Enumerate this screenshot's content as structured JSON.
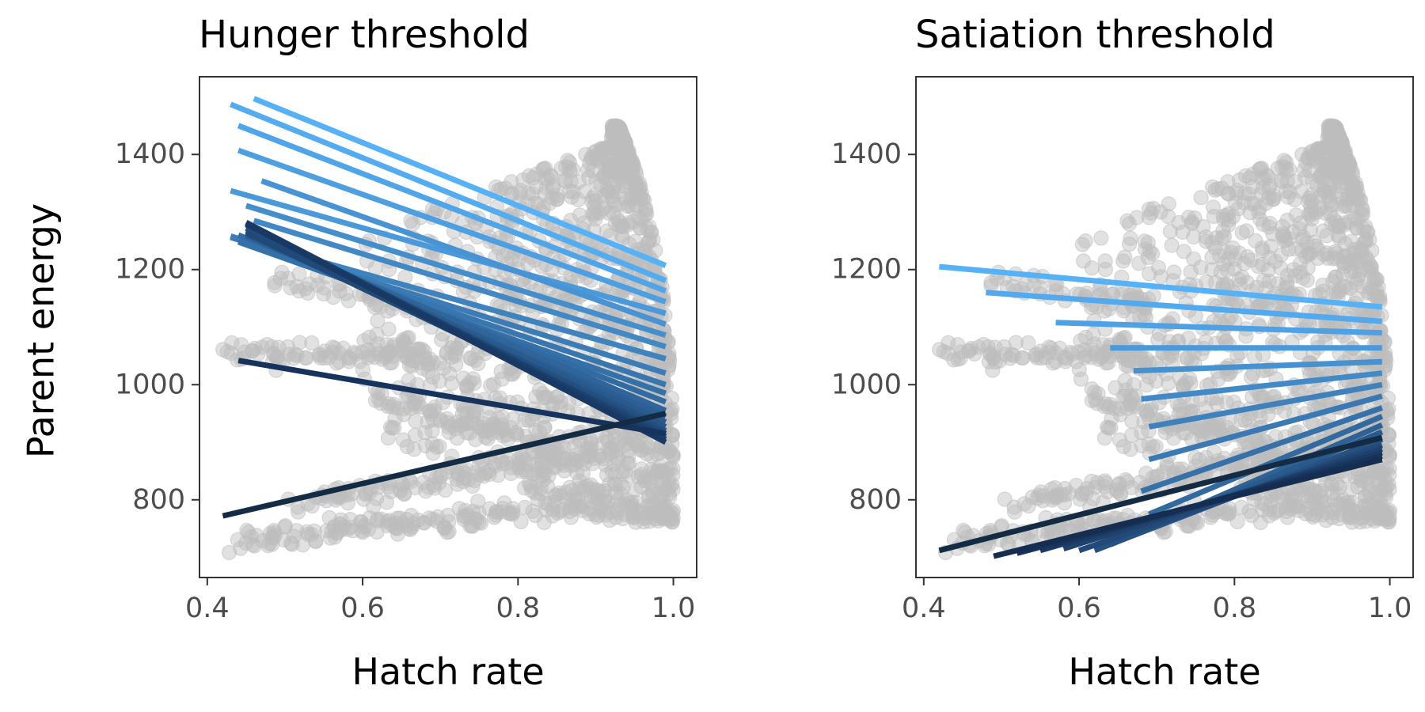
{
  "chart_data": [
    {
      "type": "scatter",
      "title": "Hunger threshold",
      "xlabel": "Hatch rate",
      "ylabel": "Parent energy",
      "xlim": [
        0.39,
        1.03
      ],
      "ylim": [
        665,
        1535
      ],
      "x_ticks": [
        0.4,
        0.6,
        0.8,
        1.0
      ],
      "x_tick_labels": [
        "0.4",
        "0.6",
        "0.8",
        "1.0"
      ],
      "y_ticks": [
        800,
        1000,
        1200,
        1400
      ],
      "y_tick_labels": [
        "800",
        "1000",
        "1200",
        "1400"
      ],
      "grid": false,
      "points_color": "#bdbdbd",
      "regression_lines": [
        {
          "x": [
            0.46,
            0.99
          ],
          "y": [
            1497,
            1207
          ],
          "color": "#56b1f7"
        },
        {
          "x": [
            0.43,
            0.99
          ],
          "y": [
            1487,
            1181
          ],
          "color": "#53abf0"
        },
        {
          "x": [
            0.44,
            0.99
          ],
          "y": [
            1450,
            1163
          ],
          "color": "#50a5e9"
        },
        {
          "x": [
            0.44,
            0.99
          ],
          "y": [
            1407,
            1144
          ],
          "color": "#4d9fe1"
        },
        {
          "x": [
            0.43,
            0.99
          ],
          "y": [
            1337,
            1124
          ],
          "color": "#4a99da"
        },
        {
          "x": [
            0.47,
            0.99
          ],
          "y": [
            1354,
            1105
          ],
          "color": "#4793d3"
        },
        {
          "x": [
            0.45,
            0.99
          ],
          "y": [
            1311,
            1086
          ],
          "color": "#448ecc"
        },
        {
          "x": [
            0.46,
            0.99
          ],
          "y": [
            1285,
            1066
          ],
          "color": "#4188c5"
        },
        {
          "x": [
            0.43,
            0.99
          ],
          "y": [
            1258,
            1045
          ],
          "color": "#3e82be"
        },
        {
          "x": [
            0.43,
            0.99
          ],
          "y": [
            1256,
            1020
          ],
          "color": "#3b7cb7"
        },
        {
          "x": [
            0.44,
            0.99
          ],
          "y": [
            1252,
            1000
          ],
          "color": "#3876b0"
        },
        {
          "x": [
            0.44,
            0.99
          ],
          "y": [
            1248,
            985
          ],
          "color": "#3571a9"
        },
        {
          "x": [
            0.44,
            0.99
          ],
          "y": [
            1260,
            970
          ],
          "color": "#326ba2"
        },
        {
          "x": [
            0.45,
            0.99
          ],
          "y": [
            1266,
            955
          ],
          "color": "#2f659b"
        },
        {
          "x": [
            0.45,
            0.99
          ],
          "y": [
            1258,
            945
          ],
          "color": "#2c6094"
        },
        {
          "x": [
            0.45,
            0.99
          ],
          "y": [
            1268,
            935
          ],
          "color": "#295a8d"
        },
        {
          "x": [
            0.45,
            0.99
          ],
          "y": [
            1262,
            927
          ],
          "color": "#265486"
        },
        {
          "x": [
            0.45,
            0.99
          ],
          "y": [
            1272,
            920
          ],
          "color": "#234f7f"
        },
        {
          "x": [
            0.45,
            0.99
          ],
          "y": [
            1264,
            915
          ],
          "color": "#204978"
        },
        {
          "x": [
            0.45,
            0.99
          ],
          "y": [
            1278,
            910
          ],
          "color": "#1d4371"
        },
        {
          "x": [
            0.45,
            0.99
          ],
          "y": [
            1282,
            905
          ],
          "color": "#1b3e6a"
        },
        {
          "x": [
            0.45,
            0.99
          ],
          "y": [
            1280,
            900
          ],
          "color": "#183964"
        },
        {
          "x": [
            0.44,
            0.99
          ],
          "y": [
            1042,
            915
          ],
          "color": "#15335d"
        },
        {
          "x": [
            0.42,
            0.99
          ],
          "y": [
            772,
            950
          ],
          "color": "#132b43"
        }
      ]
    },
    {
      "type": "scatter",
      "title": "Satiation threshold",
      "xlabel": "Hatch rate",
      "ylabel": "",
      "xlim": [
        0.39,
        1.03
      ],
      "ylim": [
        665,
        1535
      ],
      "x_ticks": [
        0.4,
        0.6,
        0.8,
        1.0
      ],
      "x_tick_labels": [
        "0.4",
        "0.6",
        "0.8",
        "1.0"
      ],
      "y_ticks": [
        800,
        1000,
        1200,
        1400
      ],
      "y_tick_labels": [
        "800",
        "1000",
        "1200",
        "1400"
      ],
      "grid": false,
      "points_color": "#bdbdbd",
      "regression_lines": [
        {
          "x": [
            0.42,
            0.99
          ],
          "y": [
            1205,
            1135
          ],
          "color": "#56b1f7"
        },
        {
          "x": [
            0.48,
            0.99
          ],
          "y": [
            1160,
            1110
          ],
          "color": "#52a9ee"
        },
        {
          "x": [
            0.57,
            0.99
          ],
          "y": [
            1108,
            1090
          ],
          "color": "#4ea1e4"
        },
        {
          "x": [
            0.64,
            0.99
          ],
          "y": [
            1064,
            1064
          ],
          "color": "#4a99da"
        },
        {
          "x": [
            0.67,
            0.99
          ],
          "y": [
            1024,
            1040
          ],
          "color": "#4691d0"
        },
        {
          "x": [
            0.68,
            0.99
          ],
          "y": [
            975,
            1020
          ],
          "color": "#4289c7"
        },
        {
          "x": [
            0.69,
            0.99
          ],
          "y": [
            927,
            1000
          ],
          "color": "#3e81bd"
        },
        {
          "x": [
            0.69,
            0.99
          ],
          "y": [
            870,
            980
          ],
          "color": "#3a79b3"
        },
        {
          "x": [
            0.68,
            0.99
          ],
          "y": [
            815,
            960
          ],
          "color": "#3671a9"
        },
        {
          "x": [
            0.69,
            0.99
          ],
          "y": [
            775,
            945
          ],
          "color": "#32699f"
        },
        {
          "x": [
            0.66,
            0.99
          ],
          "y": [
            735,
            930
          ],
          "color": "#2e6195"
        },
        {
          "x": [
            0.64,
            0.99
          ],
          "y": [
            722,
            918
          ],
          "color": "#2a598c"
        },
        {
          "x": [
            0.62,
            0.99
          ],
          "y": [
            712,
            905
          ],
          "color": "#265182"
        },
        {
          "x": [
            0.6,
            0.99
          ],
          "y": [
            712,
            895
          ],
          "color": "#224978"
        },
        {
          "x": [
            0.58,
            0.99
          ],
          "y": [
            715,
            888
          ],
          "color": "#1e416e"
        },
        {
          "x": [
            0.55,
            0.99
          ],
          "y": [
            712,
            882
          ],
          "color": "#1a3a64"
        },
        {
          "x": [
            0.52,
            0.99
          ],
          "y": [
            707,
            876
          ],
          "color": "#17335a"
        },
        {
          "x": [
            0.49,
            0.99
          ],
          "y": [
            702,
            870
          ],
          "color": "#142d50"
        },
        {
          "x": [
            0.42,
            0.99
          ],
          "y": [
            712,
            908
          ],
          "color": "#132b43"
        }
      ]
    }
  ]
}
